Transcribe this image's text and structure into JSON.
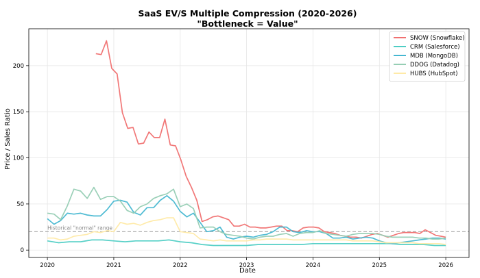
{
  "chart_data": {
    "type": "line",
    "title": "SaaS EV/S Multiple Compression (2020-2026)",
    "subtitle": "\"Bottleneck = Value\"",
    "xlabel": "Date",
    "ylabel": "Price / Sales Ratio",
    "xlim": [
      2019.72,
      2026.35
    ],
    "ylim": [
      -8,
      240
    ],
    "x_ticks": [
      2020,
      2021,
      2022,
      2023,
      2024,
      2025,
      2026
    ],
    "y_ticks": [
      0,
      50,
      100,
      150,
      200
    ],
    "grid": true,
    "legend_position": "top-right",
    "reference_line": {
      "y": 20,
      "label": "Historical \"normal\" range",
      "color": "#999999"
    },
    "series": [
      {
        "name": "SNOW (Snowflake)",
        "color": "#f07070",
        "points": [
          [
            2020.73,
            213
          ],
          [
            2020.81,
            212
          ],
          [
            2020.89,
            227
          ],
          [
            2020.97,
            197
          ],
          [
            2021.05,
            191
          ],
          [
            2021.13,
            149
          ],
          [
            2021.21,
            132
          ],
          [
            2021.29,
            133
          ],
          [
            2021.37,
            115
          ],
          [
            2021.45,
            116
          ],
          [
            2021.53,
            128
          ],
          [
            2021.61,
            122
          ],
          [
            2021.69,
            122
          ],
          [
            2021.77,
            142
          ],
          [
            2021.85,
            114
          ],
          [
            2021.93,
            113
          ],
          [
            2022.01,
            98
          ],
          [
            2022.09,
            80
          ],
          [
            2022.17,
            68
          ],
          [
            2022.25,
            54
          ],
          [
            2022.33,
            31
          ],
          [
            2022.41,
            33
          ],
          [
            2022.49,
            36
          ],
          [
            2022.57,
            37
          ],
          [
            2022.65,
            35
          ],
          [
            2022.73,
            33
          ],
          [
            2022.81,
            26
          ],
          [
            2022.89,
            26
          ],
          [
            2022.97,
            28
          ],
          [
            2023.05,
            25
          ],
          [
            2023.13,
            25
          ],
          [
            2023.21,
            24
          ],
          [
            2023.29,
            24
          ],
          [
            2023.37,
            25
          ],
          [
            2023.45,
            26
          ],
          [
            2023.53,
            26
          ],
          [
            2023.61,
            21
          ],
          [
            2023.69,
            21
          ],
          [
            2023.77,
            20
          ],
          [
            2023.85,
            24
          ],
          [
            2023.93,
            25
          ],
          [
            2024.01,
            25
          ],
          [
            2024.09,
            24
          ],
          [
            2024.17,
            20
          ],
          [
            2024.25,
            19
          ],
          [
            2024.33,
            18
          ],
          [
            2024.41,
            16
          ],
          [
            2024.49,
            15
          ],
          [
            2024.57,
            14
          ],
          [
            2024.65,
            14
          ],
          [
            2024.73,
            13
          ],
          [
            2024.81,
            15
          ],
          [
            2024.89,
            17
          ],
          [
            2024.97,
            18
          ],
          [
            2025.05,
            16
          ],
          [
            2025.13,
            14
          ],
          [
            2025.21,
            16
          ],
          [
            2025.29,
            18
          ],
          [
            2025.37,
            19
          ],
          [
            2025.45,
            19
          ],
          [
            2025.53,
            19
          ],
          [
            2025.61,
            18
          ],
          [
            2025.69,
            22
          ],
          [
            2025.77,
            19
          ],
          [
            2025.85,
            16
          ],
          [
            2025.93,
            15
          ],
          [
            2026.0,
            14
          ]
        ]
      },
      {
        "name": "CRM (Salesforce)",
        "color": "#4ecdc4",
        "points": [
          [
            2020.0,
            10
          ],
          [
            2020.17,
            8
          ],
          [
            2020.33,
            9
          ],
          [
            2020.5,
            9
          ],
          [
            2020.67,
            11
          ],
          [
            2020.83,
            11
          ],
          [
            2021.0,
            10
          ],
          [
            2021.17,
            9
          ],
          [
            2021.33,
            10
          ],
          [
            2021.5,
            10
          ],
          [
            2021.67,
            10
          ],
          [
            2021.83,
            11
          ],
          [
            2022.0,
            9
          ],
          [
            2022.17,
            8
          ],
          [
            2022.33,
            6
          ],
          [
            2022.5,
            5
          ],
          [
            2022.67,
            5
          ],
          [
            2022.83,
            5
          ],
          [
            2023.0,
            5
          ],
          [
            2023.17,
            6
          ],
          [
            2023.33,
            6
          ],
          [
            2023.5,
            6
          ],
          [
            2023.67,
            6
          ],
          [
            2023.83,
            6
          ],
          [
            2024.0,
            7
          ],
          [
            2024.17,
            7
          ],
          [
            2024.33,
            7
          ],
          [
            2024.5,
            7
          ],
          [
            2024.67,
            7
          ],
          [
            2024.83,
            7
          ],
          [
            2025.0,
            7
          ],
          [
            2025.17,
            7
          ],
          [
            2025.33,
            6
          ],
          [
            2025.5,
            6
          ],
          [
            2025.67,
            6
          ],
          [
            2025.83,
            5
          ],
          [
            2026.0,
            5
          ]
        ]
      },
      {
        "name": "MDB (MongoDB)",
        "color": "#45b7d1",
        "points": [
          [
            2020.0,
            34
          ],
          [
            2020.1,
            28
          ],
          [
            2020.2,
            32
          ],
          [
            2020.3,
            40
          ],
          [
            2020.4,
            39
          ],
          [
            2020.5,
            40
          ],
          [
            2020.6,
            38
          ],
          [
            2020.7,
            37
          ],
          [
            2020.8,
            37
          ],
          [
            2020.9,
            44
          ],
          [
            2021.0,
            53
          ],
          [
            2021.1,
            54
          ],
          [
            2021.2,
            52
          ],
          [
            2021.3,
            41
          ],
          [
            2021.4,
            38
          ],
          [
            2021.5,
            46
          ],
          [
            2021.6,
            46
          ],
          [
            2021.7,
            54
          ],
          [
            2021.8,
            59
          ],
          [
            2021.9,
            53
          ],
          [
            2022.0,
            42
          ],
          [
            2022.1,
            36
          ],
          [
            2022.2,
            40
          ],
          [
            2022.3,
            30
          ],
          [
            2022.4,
            20
          ],
          [
            2022.5,
            21
          ],
          [
            2022.6,
            25
          ],
          [
            2022.7,
            14
          ],
          [
            2022.8,
            12
          ],
          [
            2022.9,
            14
          ],
          [
            2023.0,
            15
          ],
          [
            2023.1,
            14
          ],
          [
            2023.2,
            16
          ],
          [
            2023.3,
            17
          ],
          [
            2023.4,
            20
          ],
          [
            2023.5,
            25
          ],
          [
            2023.6,
            25
          ],
          [
            2023.7,
            20
          ],
          [
            2023.8,
            19
          ],
          [
            2023.9,
            21
          ],
          [
            2024.0,
            20
          ],
          [
            2024.1,
            20
          ],
          [
            2024.2,
            18
          ],
          [
            2024.3,
            13
          ],
          [
            2024.4,
            13
          ],
          [
            2024.5,
            14
          ],
          [
            2024.6,
            12
          ],
          [
            2024.7,
            13
          ],
          [
            2024.8,
            14
          ],
          [
            2024.9,
            13
          ],
          [
            2025.0,
            10
          ],
          [
            2025.1,
            8
          ],
          [
            2025.2,
            7
          ],
          [
            2025.3,
            8
          ],
          [
            2025.4,
            9
          ],
          [
            2025.5,
            10
          ],
          [
            2025.6,
            11
          ],
          [
            2025.7,
            12
          ],
          [
            2025.8,
            13
          ],
          [
            2025.9,
            13
          ],
          [
            2026.0,
            12
          ]
        ]
      },
      {
        "name": "DDOG (Datadog)",
        "color": "#96ceb4",
        "points": [
          [
            2020.0,
            40
          ],
          [
            2020.1,
            39
          ],
          [
            2020.2,
            33
          ],
          [
            2020.3,
            48
          ],
          [
            2020.4,
            66
          ],
          [
            2020.5,
            64
          ],
          [
            2020.6,
            56
          ],
          [
            2020.7,
            68
          ],
          [
            2020.8,
            55
          ],
          [
            2020.9,
            58
          ],
          [
            2021.0,
            58
          ],
          [
            2021.1,
            53
          ],
          [
            2021.2,
            43
          ],
          [
            2021.3,
            40
          ],
          [
            2021.4,
            47
          ],
          [
            2021.5,
            50
          ],
          [
            2021.6,
            56
          ],
          [
            2021.7,
            59
          ],
          [
            2021.8,
            61
          ],
          [
            2021.9,
            66
          ],
          [
            2022.0,
            47
          ],
          [
            2022.1,
            50
          ],
          [
            2022.2,
            45
          ],
          [
            2022.3,
            24
          ],
          [
            2022.4,
            25
          ],
          [
            2022.5,
            25
          ],
          [
            2022.6,
            20
          ],
          [
            2022.7,
            17
          ],
          [
            2022.8,
            16
          ],
          [
            2022.9,
            15
          ],
          [
            2023.0,
            13
          ],
          [
            2023.1,
            12
          ],
          [
            2023.2,
            14
          ],
          [
            2023.3,
            15
          ],
          [
            2023.4,
            15
          ],
          [
            2023.5,
            17
          ],
          [
            2023.6,
            18
          ],
          [
            2023.7,
            15
          ],
          [
            2023.8,
            18
          ],
          [
            2023.9,
            19
          ],
          [
            2024.0,
            19
          ],
          [
            2024.1,
            21
          ],
          [
            2024.2,
            18
          ],
          [
            2024.3,
            17
          ],
          [
            2024.4,
            16
          ],
          [
            2024.5,
            15
          ],
          [
            2024.6,
            17
          ],
          [
            2024.7,
            18
          ],
          [
            2024.8,
            18
          ],
          [
            2024.9,
            18
          ],
          [
            2025.0,
            17
          ],
          [
            2025.1,
            15
          ],
          [
            2025.2,
            14
          ],
          [
            2025.3,
            14
          ],
          [
            2025.4,
            14
          ],
          [
            2025.5,
            14
          ],
          [
            2025.6,
            13
          ],
          [
            2025.7,
            13
          ],
          [
            2025.8,
            12
          ],
          [
            2025.9,
            12
          ],
          [
            2026.0,
            13
          ]
        ]
      },
      {
        "name": "HUBS (HubSpot)",
        "color": "#ffeaa7",
        "points": [
          [
            2020.0,
            13
          ],
          [
            2020.1,
            13
          ],
          [
            2020.2,
            11
          ],
          [
            2020.3,
            12
          ],
          [
            2020.4,
            15
          ],
          [
            2020.5,
            16
          ],
          [
            2020.6,
            17
          ],
          [
            2020.7,
            20
          ],
          [
            2020.8,
            19
          ],
          [
            2020.9,
            21
          ],
          [
            2021.0,
            20
          ],
          [
            2021.1,
            30
          ],
          [
            2021.2,
            28
          ],
          [
            2021.3,
            29
          ],
          [
            2021.4,
            27
          ],
          [
            2021.5,
            30
          ],
          [
            2021.6,
            32
          ],
          [
            2021.7,
            33
          ],
          [
            2021.8,
            35
          ],
          [
            2021.9,
            35
          ],
          [
            2022.0,
            20
          ],
          [
            2022.1,
            19
          ],
          [
            2022.2,
            18
          ],
          [
            2022.3,
            12
          ],
          [
            2022.4,
            11
          ],
          [
            2022.5,
            10
          ],
          [
            2022.6,
            11
          ],
          [
            2022.7,
            10
          ],
          [
            2022.8,
            10
          ],
          [
            2022.9,
            10
          ],
          [
            2023.0,
            10
          ],
          [
            2023.1,
            11
          ],
          [
            2023.2,
            11
          ],
          [
            2023.3,
            12
          ],
          [
            2023.4,
            12
          ],
          [
            2023.5,
            12
          ],
          [
            2023.6,
            12
          ],
          [
            2023.7,
            11
          ],
          [
            2023.8,
            11
          ],
          [
            2023.9,
            11
          ],
          [
            2024.0,
            11
          ],
          [
            2024.1,
            11
          ],
          [
            2024.2,
            11
          ],
          [
            2024.3,
            11
          ],
          [
            2024.4,
            11
          ],
          [
            2024.5,
            11
          ],
          [
            2024.6,
            10
          ],
          [
            2024.7,
            10
          ],
          [
            2024.8,
            10
          ],
          [
            2024.9,
            10
          ],
          [
            2025.0,
            9
          ],
          [
            2025.1,
            8
          ],
          [
            2025.2,
            8
          ],
          [
            2025.3,
            8
          ],
          [
            2025.4,
            8
          ],
          [
            2025.5,
            8
          ],
          [
            2025.6,
            7
          ],
          [
            2025.7,
            7
          ],
          [
            2025.8,
            7
          ],
          [
            2025.9,
            7
          ],
          [
            2026.0,
            6
          ]
        ]
      }
    ]
  }
}
